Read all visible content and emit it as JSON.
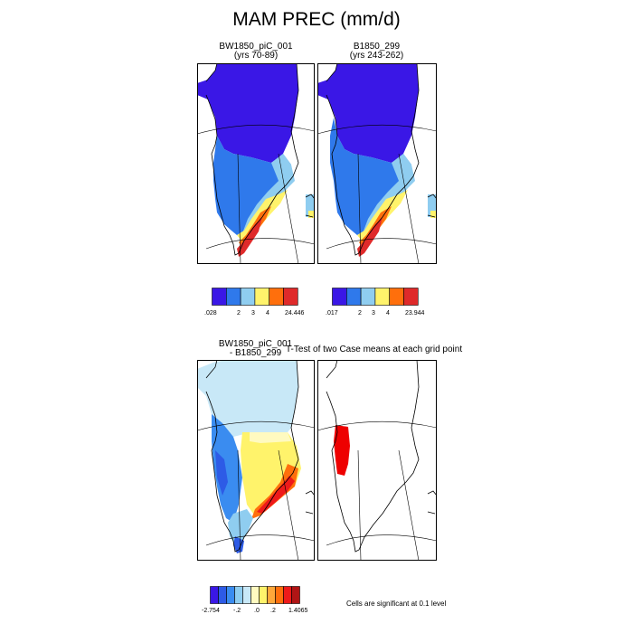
{
  "figure": {
    "title": "MAM PREC (mm/d)"
  },
  "panels": {
    "p1": {
      "line1": "BW1850_piC_001",
      "line2": "(yrs 70-89)"
    },
    "p2": {
      "line1": "B1850_299",
      "line2": "(yrs 243-262)"
    },
    "p3": {
      "line1": "BW1850_piC_001",
      "line2": "- B1850_299"
    },
    "p4": {
      "title": "T-Test of two Case means at each grid point"
    }
  },
  "colorbars": {
    "cb1": {
      "colors": [
        "#3a17e6",
        "#2f79eb",
        "#8fcdf0",
        "#fff36b",
        "#ff6f0c",
        "#df2a2a"
      ],
      "labels": [
        ".028",
        "2",
        "3",
        "4",
        "24.446"
      ]
    },
    "cb2": {
      "colors": [
        "#3a17e6",
        "#2f79eb",
        "#8fcdf0",
        "#fff36b",
        "#ff6f0c",
        "#df2a2a"
      ],
      "labels": [
        ".017",
        "2",
        "3",
        "4",
        "23.944"
      ]
    },
    "cb3": {
      "colors": [
        "#3a17e6",
        "#2d5be6",
        "#3a8cf0",
        "#8fcdf0",
        "#c8e8f7",
        "#fffac0",
        "#fff36b",
        "#ffa83a",
        "#ff6f0c",
        "#ee1a1a",
        "#b01515"
      ],
      "labels": [
        "-2.754",
        "-.2",
        ".0",
        ".2",
        "1.4065"
      ]
    }
  },
  "note": "Cells are significant at 0.1 level"
}
